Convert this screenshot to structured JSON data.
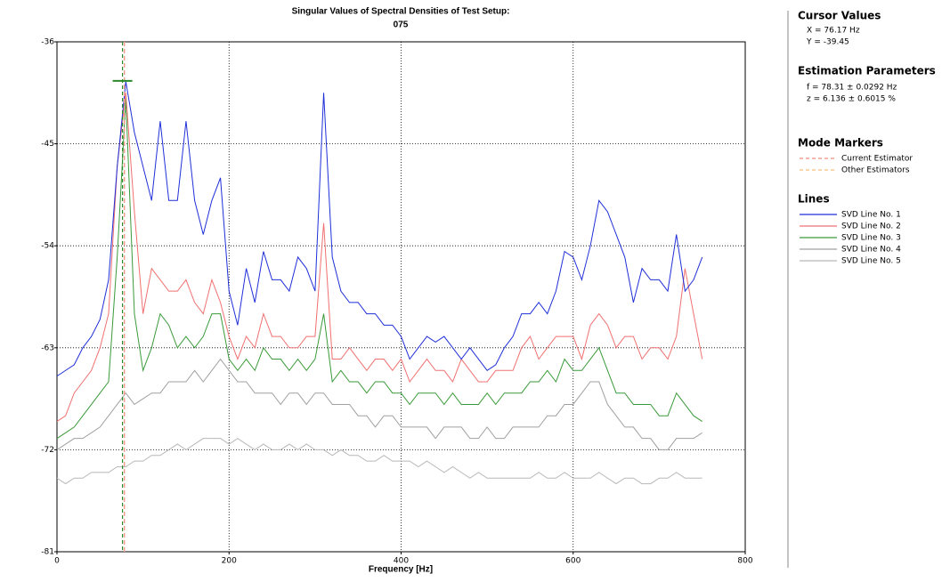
{
  "chart_data": {
    "type": "line",
    "title": "Singular Values of Spectral Densities of Test Setup:",
    "subtitle": "075",
    "x_label": "Frequency [Hz]",
    "xlim": [
      0,
      800
    ],
    "xticks": [
      0,
      200,
      400,
      600,
      800
    ],
    "ylim": [
      -81,
      -36
    ],
    "yticks": [
      -81,
      -72,
      -63,
      -54,
      -45,
      -36
    ],
    "grid": true,
    "cursor": {
      "x": 76.17,
      "y": -39.45
    },
    "mode_marker": 78.31,
    "x": [
      0,
      10,
      20,
      30,
      40,
      50,
      60,
      70,
      80,
      90,
      100,
      110,
      120,
      130,
      140,
      150,
      160,
      170,
      180,
      190,
      200,
      210,
      220,
      230,
      240,
      250,
      260,
      270,
      280,
      290,
      300,
      310,
      320,
      330,
      340,
      350,
      360,
      370,
      380,
      390,
      400,
      410,
      420,
      430,
      440,
      450,
      460,
      470,
      480,
      490,
      500,
      510,
      520,
      530,
      540,
      550,
      560,
      570,
      580,
      590,
      600,
      610,
      620,
      630,
      640,
      650,
      660,
      670,
      680,
      690,
      700,
      710,
      720,
      730,
      740,
      750
    ],
    "series": [
      {
        "name": "SVD Line No. 1",
        "color": "#1f2fd8",
        "values": [
          -65.5,
          -65,
          -64.5,
          -63,
          -62,
          -60.5,
          -57,
          -47,
          -39.5,
          -44,
          -47,
          -50,
          -43,
          -50,
          -50,
          -43,
          -50,
          -53,
          -50,
          -48,
          -58,
          -61,
          -56,
          -59,
          -54.5,
          -57,
          -57,
          -58,
          -55,
          -56,
          -58,
          -40.5,
          -55,
          -58,
          -59,
          -59,
          -60,
          -60,
          -61,
          -61,
          -62,
          -64,
          -63,
          -62,
          -62.5,
          -62,
          -63,
          -64,
          -63,
          -64,
          -65,
          -64.5,
          -63,
          -62,
          -60,
          -60,
          -59,
          -60,
          -58,
          -54.5,
          -55,
          -57,
          -54,
          -50,
          -51,
          -53,
          -55,
          -59,
          -56,
          -57,
          -57,
          -58,
          -53,
          -58,
          -57,
          -55
        ]
      },
      {
        "name": "SVD Line No. 2",
        "color": "#f07070",
        "values": [
          -69.5,
          -69,
          -67,
          -66,
          -65,
          -63,
          -60,
          -47,
          -40.5,
          -51,
          -60,
          -56,
          -57,
          -58,
          -58,
          -57,
          -59,
          -60,
          -57,
          -59,
          -62,
          -64,
          -62,
          -63,
          -60,
          -62,
          -62,
          -63,
          -63,
          -62,
          -62,
          -52,
          -64,
          -64,
          -63,
          -64,
          -65,
          -64,
          -64,
          -65,
          -64,
          -66,
          -65,
          -64,
          -65,
          -65,
          -66,
          -64,
          -65,
          -66,
          -66,
          -65,
          -65,
          -65,
          -63,
          -62,
          -64,
          -63,
          -62,
          -62,
          -62,
          -64,
          -61,
          -60,
          -61,
          -63,
          -62,
          -62,
          -64,
          -63,
          -63,
          -64,
          -62,
          -56,
          -60,
          -64
        ]
      },
      {
        "name": "SVD Line No. 3",
        "color": "#3a9a3a",
        "values": [
          -71,
          -70.5,
          -70,
          -69,
          -68,
          -67,
          -66,
          -55,
          -41,
          -60,
          -65,
          -63,
          -60,
          -61,
          -63,
          -62,
          -63,
          -62,
          -60,
          -60,
          -64,
          -65,
          -64,
          -65,
          -63,
          -64,
          -64,
          -65,
          -64,
          -65,
          -64,
          -60,
          -66,
          -65,
          -66,
          -66,
          -67,
          -66,
          -66,
          -67,
          -67,
          -68,
          -67,
          -67,
          -67,
          -68,
          -67,
          -68,
          -68,
          -68,
          -67,
          -68,
          -67,
          -67,
          -67,
          -66,
          -66,
          -65,
          -66,
          -64,
          -65,
          -65,
          -64,
          -63,
          -65,
          -67,
          -67,
          -68,
          -68,
          -68,
          -69,
          -69,
          -67,
          -68,
          -69,
          -69.5
        ]
      },
      {
        "name": "SVD Line No. 4",
        "color": "#a0a0a0",
        "values": [
          -72,
          -71.5,
          -71,
          -71,
          -70.5,
          -70,
          -69,
          -68,
          -67,
          -68,
          -67.5,
          -67,
          -67,
          -66,
          -66,
          -66,
          -65,
          -66,
          -65,
          -64,
          -65,
          -66,
          -66,
          -67,
          -67,
          -67,
          -68,
          -67,
          -67,
          -68,
          -67,
          -67,
          -68,
          -68,
          -68,
          -69,
          -69,
          -70,
          -69,
          -69,
          -70,
          -70,
          -70,
          -70,
          -71,
          -70,
          -70,
          -70,
          -71,
          -71,
          -70,
          -71,
          -71,
          -70,
          -70,
          -70,
          -70,
          -69,
          -69,
          -68,
          -68,
          -67,
          -66,
          -66,
          -68,
          -69,
          -70,
          -70,
          -71,
          -71,
          -72,
          -72,
          -71,
          -71,
          -71,
          -70.5
        ]
      },
      {
        "name": "SVD Line No. 5",
        "color": "#b8b8b8",
        "values": [
          -74.5,
          -75,
          -74.5,
          -74.5,
          -74,
          -74,
          -74,
          -73.5,
          -73.5,
          -73,
          -73,
          -72.5,
          -72.5,
          -72,
          -71.5,
          -72,
          -71.5,
          -71,
          -71,
          -71,
          -71.5,
          -71,
          -71.5,
          -72,
          -71.5,
          -72,
          -72,
          -71.5,
          -72,
          -71.5,
          -72,
          -72,
          -72.5,
          -72,
          -72.5,
          -72.5,
          -73,
          -73,
          -72.5,
          -73,
          -73,
          -73,
          -73.5,
          -73,
          -73.5,
          -74,
          -73.5,
          -74,
          -74.5,
          -74,
          -74.5,
          -74.5,
          -74.5,
          -74.5,
          -74.5,
          -74.5,
          -74,
          -74.5,
          -74.5,
          -74,
          -74.5,
          -74.5,
          -74.5,
          -74,
          -74.5,
          -75,
          -74.5,
          -74.5,
          -75,
          -75,
          -74.5,
          -74.5,
          -74,
          -74.5,
          -74.5,
          -74.5
        ]
      }
    ]
  },
  "panel": {
    "cursor_title": "Cursor Values",
    "cursor_lines": [
      "X = 76.17 Hz",
      "Y = -39.45"
    ],
    "estimation_title": "Estimation Parameters",
    "estimation_lines": [
      "f = 78.31 ± 0.0292 Hz",
      "z = 6.136 ± 0.6015 %"
    ],
    "markers_title": "Mode Markers",
    "markers": [
      {
        "label": "Current Estimator",
        "color": "#f4a090"
      },
      {
        "label": "Other Estimators",
        "color": "#f8c890"
      }
    ],
    "lines_title": "Lines"
  }
}
